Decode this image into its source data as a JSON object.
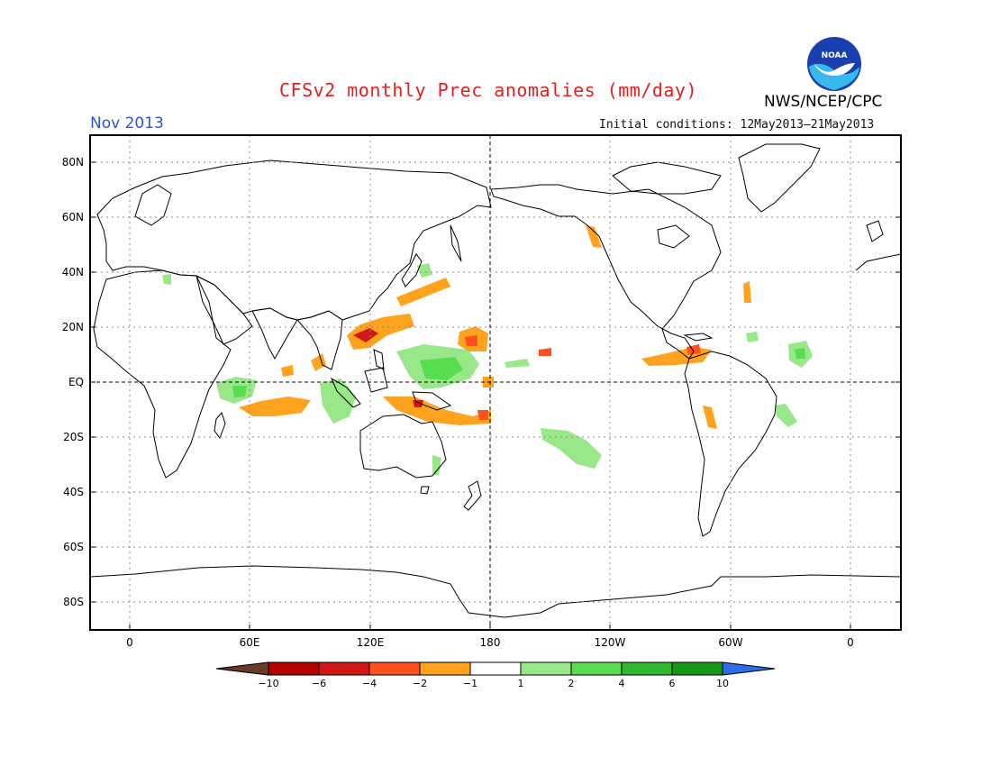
{
  "title": "CFSv2 monthly Prec anomalies (mm/day)",
  "month": "Nov 2013",
  "initial_conditions": "Initial conditions: 12May2013–21May2013",
  "agency": "NWS/NCEP/CPC",
  "logo_text": "NOAA",
  "map": {
    "projection": "equirectangular",
    "lon_ticks": [
      "0",
      "60E",
      "120E",
      "180",
      "120W",
      "60W",
      "0"
    ],
    "lat_ticks": [
      "80N",
      "60N",
      "40N",
      "20N",
      "EQ",
      "20S",
      "40S",
      "60S",
      "80S"
    ],
    "grid": "dotted",
    "reference_lines": [
      "EQ",
      "180"
    ]
  },
  "legend": {
    "labels": [
      "−10",
      "−6",
      "−4",
      "−2",
      "−1",
      "1",
      "2",
      "4",
      "6",
      "10"
    ],
    "colors": [
      "#6b3a26",
      "#b50000",
      "#d01818",
      "#ff5020",
      "#ffa21e",
      "#ffffff",
      "#98e88a",
      "#58dc50",
      "#30b830",
      "#169816",
      "#2c6ee8"
    ]
  },
  "anomaly_colors": {
    "dry_mild": "#ffa21e",
    "dry_strong": "#ff5020",
    "dry_very_strong": "#d01818",
    "wet_mild": "#98e88a",
    "wet_strong": "#58dc50",
    "wet_very_strong": "#30b830"
  }
}
